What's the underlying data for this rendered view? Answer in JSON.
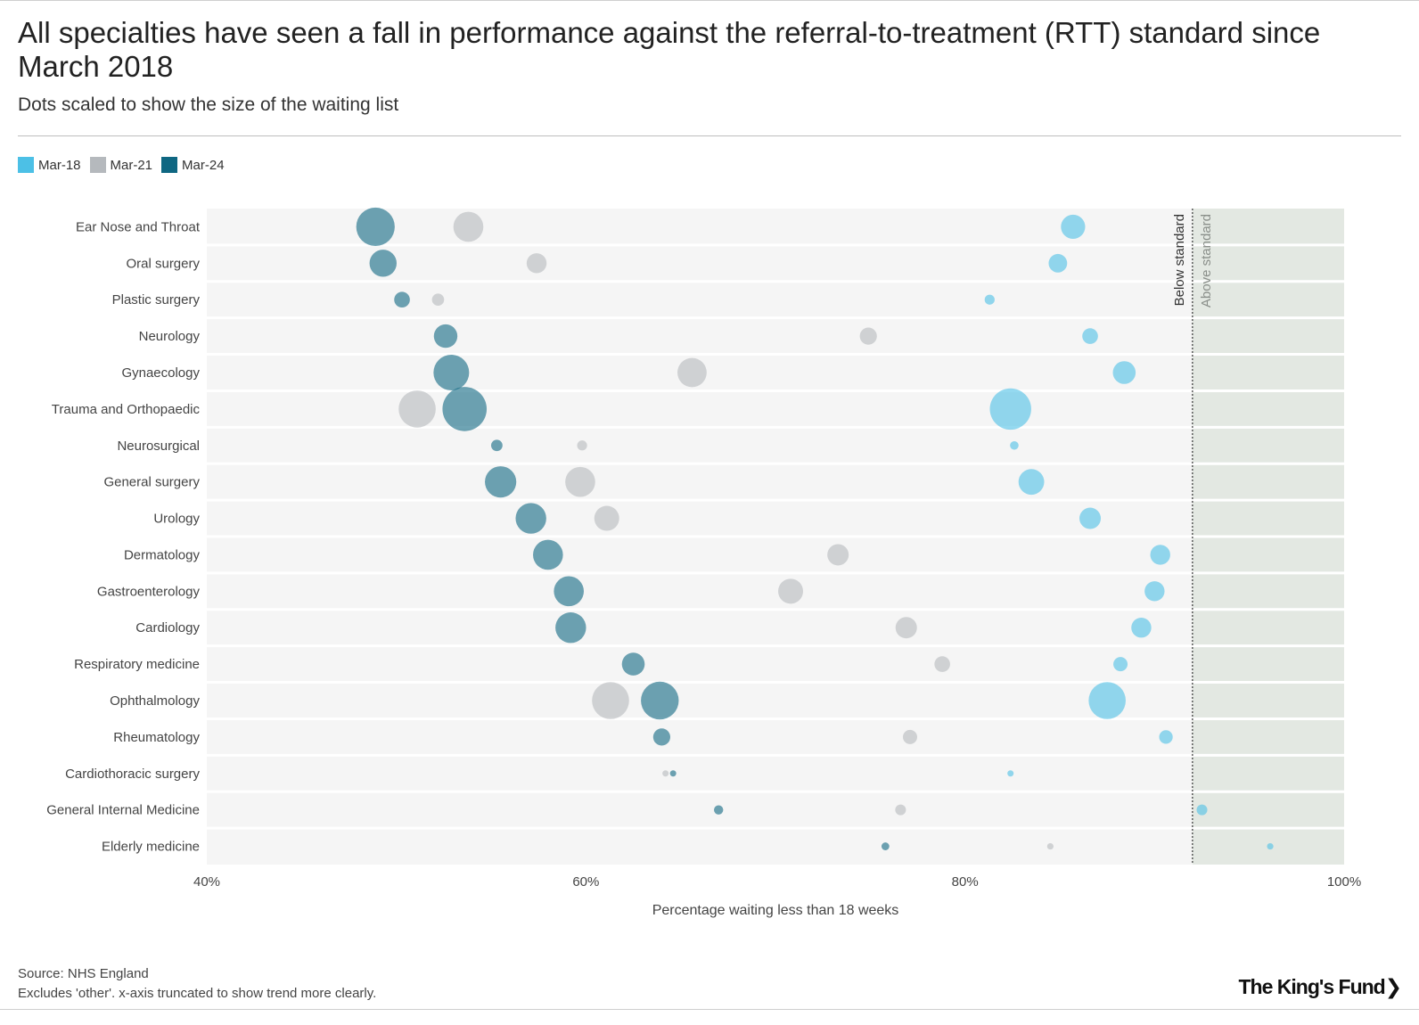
{
  "title": "All specialties have seen a fall in performance against the referral-to-treatment (RTT) standard since March 2018",
  "subtitle": "Dots scaled to show the size of the waiting list",
  "legend": [
    {
      "label": "Mar-18",
      "color": "#4cc0e6"
    },
    {
      "label": "Mar-21",
      "color": "#b5b9bd"
    },
    {
      "label": "Mar-24",
      "color": "#0f6782"
    }
  ],
  "chart_data": {
    "type": "scatter",
    "title": "All specialties have seen a fall in performance against the referral-to-treatment (RTT) standard since March 2018",
    "subtitle": "Dots scaled to show the size of the waiting list",
    "xlabel": "Percentage waiting less than 18 weeks",
    "ylabel": "",
    "xlim": [
      40,
      100
    ],
    "xticks": [
      40,
      60,
      80,
      100
    ],
    "xtick_labels": [
      "40%",
      "60%",
      "80%",
      "100%"
    ],
    "standard": 92,
    "region_labels": {
      "below": "Below standard",
      "above": "Above standard"
    },
    "size_note": "Relative waiting list size",
    "categories": [
      "Ear Nose and Throat",
      "Oral surgery",
      "Plastic surgery",
      "Neurology",
      "Gynaecology",
      "Trauma and Orthopaedic",
      "Neurosurgical",
      "General surgery",
      "Urology",
      "Dermatology",
      "Gastroenterology",
      "Cardiology",
      "Respiratory medicine",
      "Ophthalmology",
      "Rheumatology",
      "Cardiothoracic surgery",
      "General Internal Medicine",
      "Elderly medicine"
    ],
    "series": [
      {
        "name": "Mar-18",
        "color": "#4cc0e6",
        "values": [
          85.7,
          84.9,
          81.3,
          86.6,
          88.4,
          82.4,
          82.6,
          83.5,
          86.6,
          90.3,
          90.0,
          89.3,
          88.2,
          87.5,
          90.6,
          82.4,
          92.5,
          96.1
        ],
        "sizes": [
          0.34,
          0.26,
          0.14,
          0.22,
          0.32,
          0.58,
          0.12,
          0.36,
          0.3,
          0.28,
          0.28,
          0.28,
          0.2,
          0.52,
          0.19,
          0.07,
          0.15,
          0.09
        ]
      },
      {
        "name": "Mar-21",
        "color": "#b5b9bd",
        "values": [
          53.8,
          57.4,
          52.2,
          74.9,
          65.6,
          51.1,
          59.8,
          59.7,
          61.1,
          73.3,
          70.8,
          76.9,
          78.8,
          61.3,
          77.1,
          64.2,
          76.6,
          84.5
        ],
        "sizes": [
          0.42,
          0.28,
          0.17,
          0.24,
          0.41,
          0.52,
          0.14,
          0.42,
          0.35,
          0.3,
          0.35,
          0.3,
          0.22,
          0.52,
          0.2,
          0.07,
          0.15,
          0.09
        ]
      },
      {
        "name": "Mar-24",
        "color": "#0f6782",
        "values": [
          48.9,
          49.3,
          50.3,
          52.6,
          52.9,
          53.6,
          55.3,
          55.5,
          57.1,
          58.0,
          59.1,
          59.2,
          62.5,
          63.9,
          64.0,
          64.6,
          67.0,
          75.8
        ],
        "sizes": [
          0.54,
          0.38,
          0.22,
          0.33,
          0.5,
          0.62,
          0.16,
          0.44,
          0.43,
          0.42,
          0.42,
          0.43,
          0.32,
          0.53,
          0.24,
          0.08,
          0.13,
          0.11
        ]
      }
    ]
  },
  "footer": {
    "source": "Source: NHS England",
    "note": "Excludes 'other'. x-axis truncated to show trend more clearly.",
    "logo": "The King's Fund"
  }
}
